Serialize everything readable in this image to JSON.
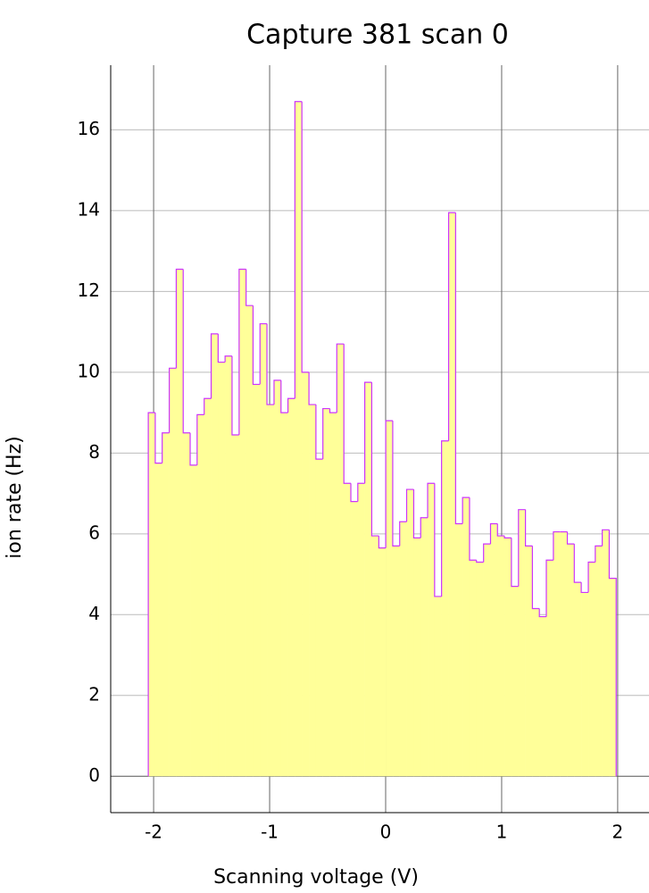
{
  "chart_data": {
    "type": "histogram",
    "title": "Capture 381 scan 0",
    "xlabel": "Scanning voltage (V)",
    "ylabel": "ion rate (Hz)",
    "bins": [
      -2.046,
      -1.986,
      -1.926,
      -1.865,
      -1.805,
      -1.745,
      -1.685,
      -1.625,
      -1.564,
      -1.504,
      -1.444,
      -1.384,
      -1.324,
      -1.263,
      -1.203,
      -1.143,
      -1.083,
      -1.023,
      -0.962,
      -0.902,
      -0.842,
      -0.782,
      -0.722,
      -0.661,
      -0.601,
      -0.541,
      -0.481,
      -0.421,
      -0.36,
      -0.3,
      -0.24,
      -0.18,
      -0.12,
      -0.059,
      0.001,
      0.061,
      0.121,
      0.181,
      0.242,
      0.302,
      0.362,
      0.422,
      0.482,
      0.543,
      0.603,
      0.663,
      0.723,
      0.783,
      0.844,
      0.904,
      0.964,
      1.024,
      1.084,
      1.145,
      1.205,
      1.265,
      1.325,
      1.385,
      1.446,
      1.506,
      1.566,
      1.626,
      1.686,
      1.747,
      1.807,
      1.867,
      1.927,
      1.987
    ],
    "values": [
      9.0,
      7.75,
      8.5,
      10.1,
      12.55,
      8.5,
      7.7,
      8.95,
      9.35,
      10.95,
      10.25,
      10.4,
      8.45,
      12.55,
      11.65,
      9.7,
      11.2,
      9.2,
      9.8,
      9.0,
      9.35,
      16.7,
      10.0,
      9.2,
      7.85,
      9.1,
      9.0,
      10.7,
      7.25,
      6.8,
      7.25,
      9.75,
      5.95,
      5.65,
      8.8,
      5.7,
      6.3,
      7.1,
      5.9,
      6.4,
      7.25,
      4.45,
      8.3,
      13.95,
      6.25,
      6.9,
      5.35,
      5.3,
      5.75,
      6.25,
      5.95,
      5.9,
      4.7,
      6.6,
      5.7,
      4.15,
      3.95,
      5.35,
      6.05,
      6.05,
      5.75,
      4.8,
      4.55,
      5.3,
      5.7,
      6.1,
      4.9
    ],
    "color": "#ffff99",
    "edgecolor": "#cc33ff",
    "xlim": [
      -2.37,
      2.27
    ],
    "ylim": [
      -0.9,
      17.6
    ],
    "xticks": [
      -2,
      -1,
      0,
      1,
      2
    ],
    "yticks": [
      0,
      2,
      4,
      6,
      8,
      10,
      12,
      14,
      16
    ],
    "grid": true
  }
}
